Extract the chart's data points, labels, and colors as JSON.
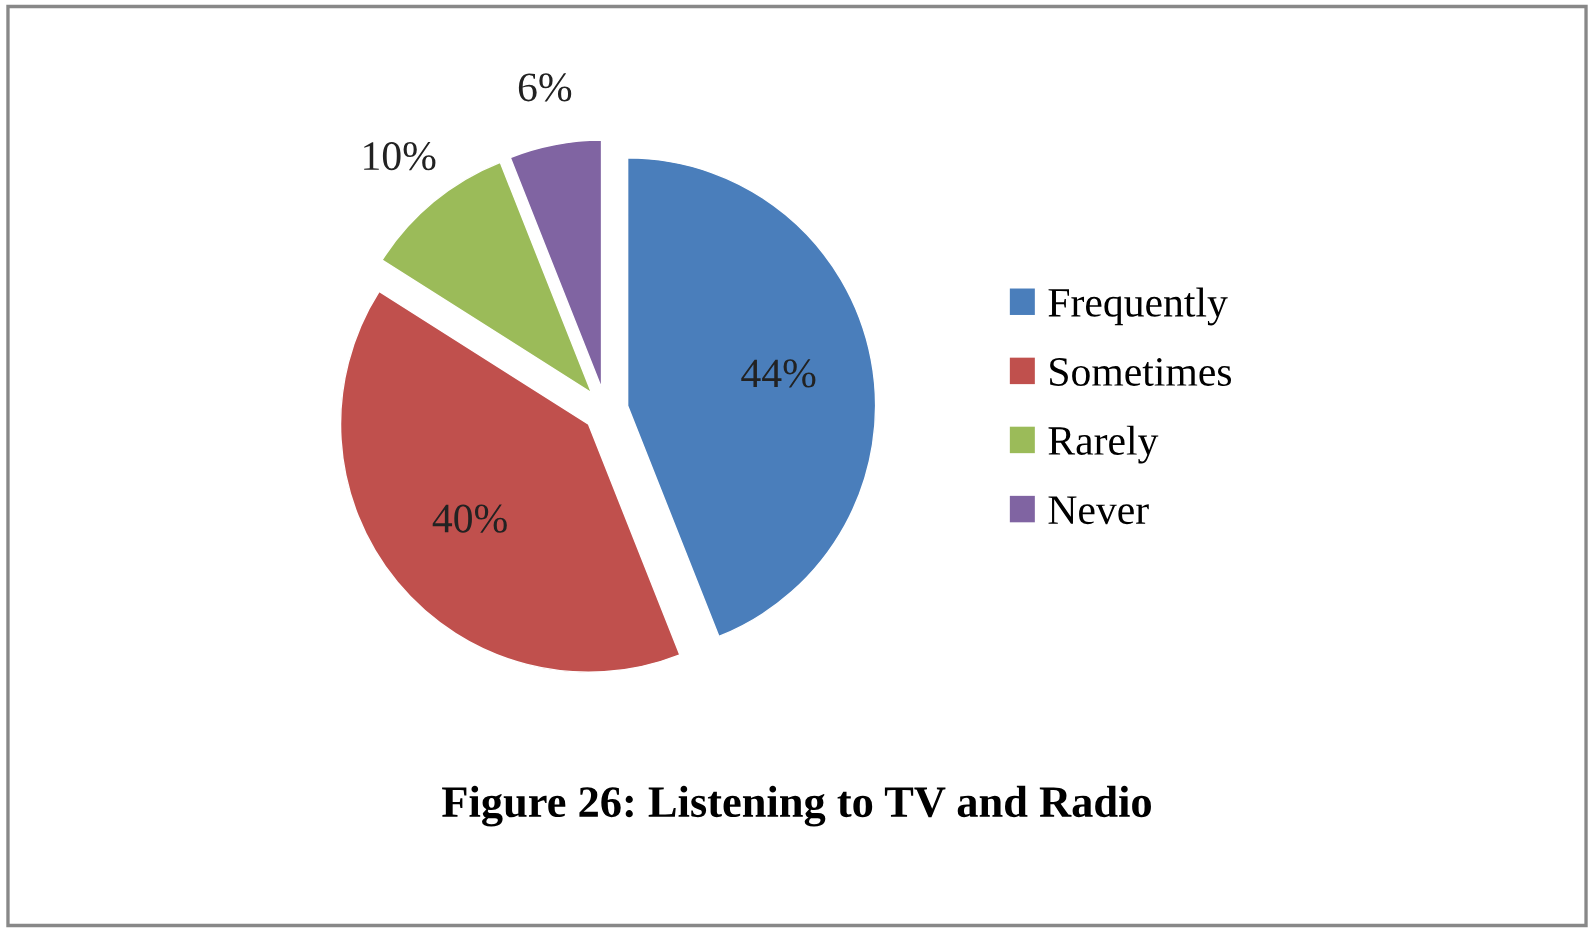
{
  "chart_data": {
    "type": "pie",
    "title": "Figure 26: Listening to TV and Radio",
    "categories": [
      "Frequently",
      "Sometimes",
      "Rarely",
      "Never"
    ],
    "values": [
      44,
      40,
      10,
      6
    ],
    "colors": [
      "#4a7ebb",
      "#c0504d",
      "#9bbb59",
      "#8064a2"
    ],
    "value_labels": [
      "44%",
      "40%",
      "10%",
      "6%"
    ],
    "legend": "right"
  }
}
